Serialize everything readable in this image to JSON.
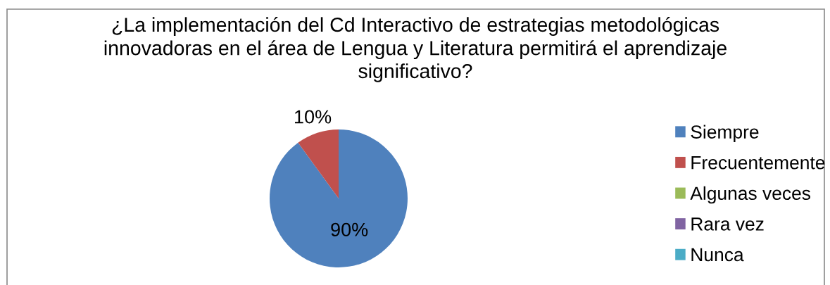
{
  "chart_data": {
    "type": "pie",
    "title": "¿La implementación del Cd Interactivo de estrategias metodológicas\ninnovadoras en el área de Lengua y Literatura permitirá el aprendizaje\nsignificativo?",
    "categories": [
      "Siempre",
      "Frecuentemente",
      "Algunas veces",
      "Rara vez",
      "Nunca"
    ],
    "values": [
      90,
      10,
      0,
      0,
      0
    ],
    "colors": [
      "#4f81bd",
      "#c0504d",
      "#9bbb59",
      "#8064a2",
      "#4bacc6"
    ],
    "value_labels": [
      "90%",
      "10%",
      null,
      null,
      null
    ],
    "legend": "right"
  }
}
